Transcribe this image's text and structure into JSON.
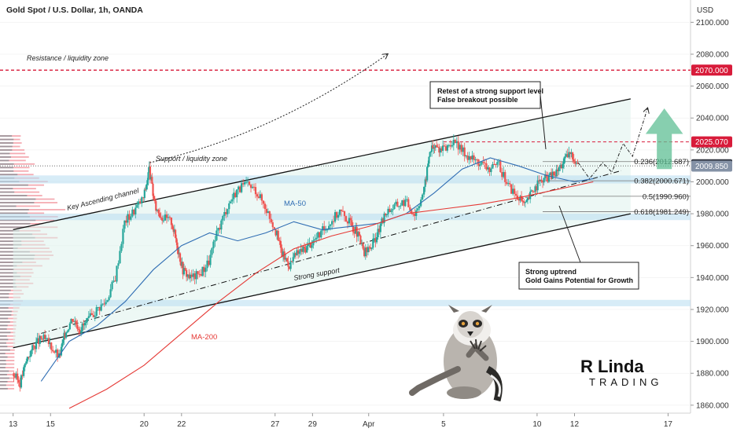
{
  "symbol_title": "Gold Spot / U.S. Dollar, 1h, OANDA",
  "currency": "USD",
  "colors": {
    "up": "#26a69a",
    "down": "#ef5350",
    "ma50": "#2f6db3",
    "ma200": "#e53935",
    "resistance": "#d81b3a",
    "channel_fill": "#dff2ec",
    "zone_blue": "#bcdff2"
  },
  "chart_data": {
    "type": "candlestick",
    "title": "Gold Spot / U.S. Dollar, 1h, OANDA",
    "y_unit": "USD",
    "ylim": [
      1855,
      2112
    ],
    "y_ticks": [
      1860,
      1880,
      1900,
      1920,
      1940,
      1960,
      1980,
      2000,
      2020,
      2040,
      2060,
      2080,
      2100
    ],
    "y_tick_labels": [
      "1860.000",
      "1880.000",
      "1900.000",
      "1920.000",
      "1940.000",
      "1960.000",
      "1980.000",
      "2000.000",
      "2020.000",
      "2040.000",
      "2060.000",
      "2080.000",
      "2100.000"
    ],
    "x_ticks": [
      {
        "label": "13",
        "day": 13
      },
      {
        "label": "15",
        "day": 15
      },
      {
        "label": "20",
        "day": 20
      },
      {
        "label": "22",
        "day": 22
      },
      {
        "label": "27",
        "day": 27
      },
      {
        "label": "29",
        "day": 29
      },
      {
        "label": "Apr",
        "day": 32
      },
      {
        "label": "5",
        "day": 36
      },
      {
        "label": "10",
        "day": 41
      },
      {
        "label": "12",
        "day": 43
      },
      {
        "label": "17",
        "day": 48
      }
    ],
    "price_path": [
      [
        13,
        1880
      ],
      [
        13.4,
        1874
      ],
      [
        13.8,
        1890
      ],
      [
        14.2,
        1898
      ],
      [
        14.6,
        1902
      ],
      [
        15,
        1898
      ],
      [
        15.5,
        1890
      ],
      [
        15.8,
        1905
      ],
      [
        16.2,
        1915
      ],
      [
        16.6,
        1908
      ],
      [
        17.0,
        1912
      ],
      [
        17.5,
        1920
      ],
      [
        18.0,
        1925
      ],
      [
        18.5,
        1940
      ],
      [
        19.0,
        1975
      ],
      [
        19.5,
        1982
      ],
      [
        20.0,
        1990
      ],
      [
        20.3,
        2008
      ],
      [
        20.6,
        1985
      ],
      [
        21.0,
        1978
      ],
      [
        21.5,
        1975
      ],
      [
        21.8,
        1960
      ],
      [
        22.1,
        1945
      ],
      [
        22.5,
        1940
      ],
      [
        23.0,
        1942
      ],
      [
        23.5,
        1950
      ],
      [
        24.0,
        1970
      ],
      [
        24.5,
        1985
      ],
      [
        25.0,
        1995
      ],
      [
        25.5,
        1998
      ],
      [
        26.0,
        1995
      ],
      [
        26.5,
        1985
      ],
      [
        27.0,
        1972
      ],
      [
        27.4,
        1955
      ],
      [
        27.8,
        1948
      ],
      [
        28.2,
        1955
      ],
      [
        28.6,
        1958
      ],
      [
        29.0,
        1962
      ],
      [
        29.5,
        1968
      ],
      [
        30.0,
        1975
      ],
      [
        30.5,
        1982
      ],
      [
        31.0,
        1975
      ],
      [
        31.4,
        1968
      ],
      [
        31.8,
        1955
      ],
      [
        32.2,
        1960
      ],
      [
        32.6,
        1970
      ],
      [
        33.0,
        1982
      ],
      [
        33.5,
        1985
      ],
      [
        34.0,
        1988
      ],
      [
        34.5,
        1980
      ],
      [
        35.0,
        1995
      ],
      [
        35.3,
        2020
      ],
      [
        35.6,
        2022
      ],
      [
        36.0,
        2020
      ],
      [
        36.5,
        2025
      ],
      [
        37.0,
        2020
      ],
      [
        37.5,
        2015
      ],
      [
        38.0,
        2012
      ],
      [
        38.5,
        2008
      ],
      [
        39.0,
        2010
      ],
      [
        39.5,
        1998
      ],
      [
        40.0,
        1990
      ],
      [
        40.4,
        1985
      ],
      [
        40.8,
        1995
      ],
      [
        41.2,
        2000
      ],
      [
        41.6,
        2003
      ],
      [
        42.0,
        2005
      ],
      [
        42.4,
        2012
      ],
      [
        42.8,
        2018
      ],
      [
        43.2,
        2012
      ]
    ],
    "series": [
      {
        "name": "MA-50",
        "points": [
          [
            14.5,
            1875
          ],
          [
            16,
            1900
          ],
          [
            17.5,
            1910
          ],
          [
            19,
            1925
          ],
          [
            20.5,
            1945
          ],
          [
            22,
            1960
          ],
          [
            23.5,
            1968
          ],
          [
            25,
            1963
          ],
          [
            26.5,
            1968
          ],
          [
            28,
            1975
          ],
          [
            29.5,
            1970
          ],
          [
            31,
            1972
          ],
          [
            32.5,
            1974
          ],
          [
            34,
            1980
          ],
          [
            35.5,
            1993
          ],
          [
            37,
            2008
          ],
          [
            38.5,
            2015
          ],
          [
            40,
            2010
          ],
          [
            41.5,
            2004
          ],
          [
            43,
            2000
          ],
          [
            44,
            2002
          ]
        ]
      },
      {
        "name": "MA-200",
        "points": [
          [
            16,
            1858
          ],
          [
            18,
            1870
          ],
          [
            20,
            1885
          ],
          [
            22,
            1905
          ],
          [
            24,
            1925
          ],
          [
            26,
            1943
          ],
          [
            28,
            1958
          ],
          [
            30,
            1966
          ],
          [
            32,
            1972
          ],
          [
            34,
            1980
          ],
          [
            36,
            1983
          ],
          [
            38,
            1986
          ],
          [
            40,
            1990
          ],
          [
            42,
            1995
          ],
          [
            44,
            2000
          ]
        ]
      }
    ],
    "levels": [
      {
        "name": "Resistance / liquidity zone",
        "price": 2070.0,
        "label": "2070.000"
      },
      {
        "name": "resistance-2025",
        "price": 2025.07,
        "label": "2025.070"
      },
      {
        "name": "current-price",
        "price": 2010.695,
        "label": "2010.695"
      },
      {
        "name": "bid",
        "price": 2009.85,
        "label": "2009.850"
      }
    ],
    "fibonacci": [
      {
        "ratio": "0.236",
        "price": 2012.687,
        "label": "0.236(2012.687)"
      },
      {
        "ratio": "0.382",
        "price": 2000.671,
        "label": "0.382(2000.671)"
      },
      {
        "ratio": "0.5",
        "price": 1990.96,
        "label": "0.5(1990.960)"
      },
      {
        "ratio": "0.618",
        "price": 1981.249,
        "label": "0.618(1981.249)"
      }
    ],
    "channel": {
      "upper": [
        [
          13,
          1970
        ],
        [
          46,
          2052
        ]
      ],
      "lower": [
        [
          13,
          1896
        ],
        [
          46,
          1980
        ]
      ]
    },
    "annotations": {
      "resistance_zone": "Resistance / liquidity zone",
      "support_zone": "Support / liquidity zone",
      "channel": "Key Ascending channel",
      "ma50": "MA-50",
      "ma200": "MA-200",
      "support": "Strong support",
      "retest_line1": "Retest of a strong support level",
      "retest_line2": "False breakout possible",
      "uptrend_line1": "Strong uptrend",
      "uptrend_line2": "Gold Gains Potential for Growth"
    }
  },
  "brand": {
    "line1": "Linda",
    "line2": "TRADING"
  }
}
